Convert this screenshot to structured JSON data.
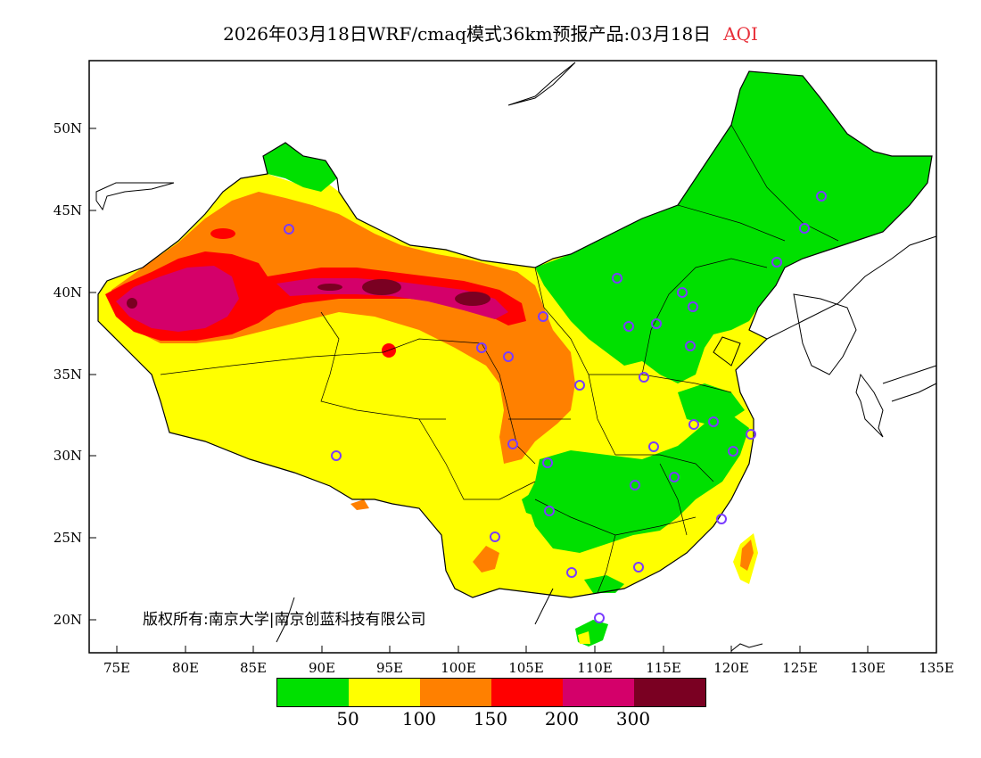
{
  "header": {
    "title": "2026年03月18日WRF/cmaq模式36km预报产品:03月18日",
    "variable": "AQI",
    "variable_color": "#e8303a"
  },
  "axes": {
    "lat_labels": [
      "50N",
      "45N",
      "40N",
      "35N",
      "30N",
      "25N",
      "20N"
    ],
    "lon_labels": [
      "75E",
      "80E",
      "85E",
      "90E",
      "95E",
      "100E",
      "105E",
      "110E",
      "115E",
      "120E",
      "125E",
      "130E",
      "135E"
    ]
  },
  "credit": "版权所有:南京大学|南京创蓝科技有限公司",
  "legend": {
    "colors": [
      "#00e000",
      "#ffff00",
      "#ff8000",
      "#ff0000",
      "#d4006a",
      "#7a0022"
    ],
    "breaks": [
      "50",
      "100",
      "150",
      "200",
      "300"
    ]
  },
  "palette": {
    "good": "#00e000",
    "moderate": "#ffff00",
    "usg": "#ff8000",
    "unhealthy": "#ff0000",
    "very_unhealthy": "#d4006a",
    "hazardous": "#7a0022",
    "station": "#7a3cff"
  }
}
